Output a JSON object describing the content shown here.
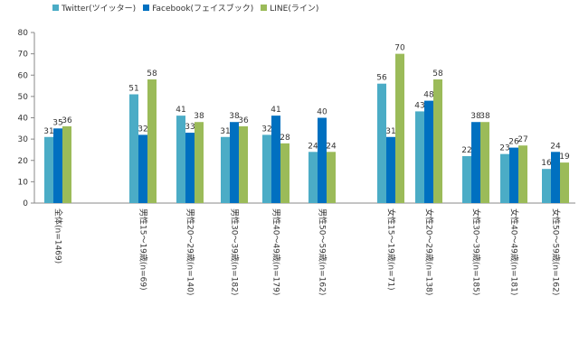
{
  "chart_data": {
    "type": "bar",
    "title": "",
    "xlabel": "",
    "ylabel": "",
    "ylim": [
      0,
      80
    ],
    "yticks": [
      0,
      10,
      20,
      30,
      40,
      50,
      60,
      70,
      80
    ],
    "gridlines": false,
    "legend_position": "top",
    "categories": [
      "全体(n=1469)",
      "男性15～19歳(n=69)",
      "男性20～29歳(n=140)",
      "男性30～39歳(n=182)",
      "男性40～49歳(n=179)",
      "男性50～59歳(n=162)",
      "女性15～19歳(n=71)",
      "女性20～29歳(n=138)",
      "女性30～39歳(n=185)",
      "女性40～49歳(n=181)",
      "女性50～59歳(n=162)"
    ],
    "series": [
      {
        "name": "Twitter(ツイッター)",
        "color": "#4bacc6",
        "values": [
          31,
          51,
          41,
          31,
          32,
          24,
          56,
          43,
          22,
          23,
          16
        ]
      },
      {
        "name": "Facebook(フェイスブック)",
        "color": "#0070c0",
        "values": [
          35,
          32,
          33,
          38,
          41,
          40,
          31,
          48,
          38,
          26,
          24
        ]
      },
      {
        "name": "LINE(ライン)",
        "color": "#9bbb59",
        "values": [
          36,
          58,
          38,
          36,
          28,
          24,
          70,
          58,
          38,
          27,
          19
        ]
      }
    ]
  }
}
